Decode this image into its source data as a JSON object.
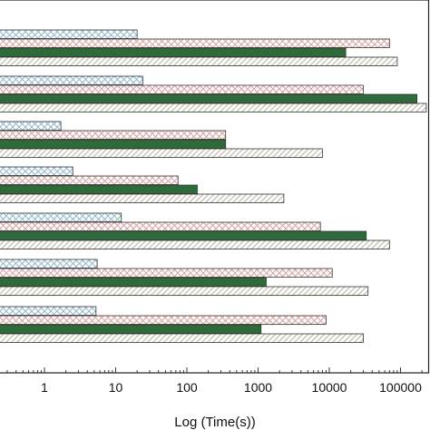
{
  "chart_data": {
    "type": "bar",
    "orientation": "horizontal",
    "x_scale": "log",
    "xlim": [
      0.05,
      250000
    ],
    "xlabel": "Log (Time(s))",
    "x_ticks": [
      1,
      10,
      100,
      1000,
      10000,
      100000
    ],
    "x_tick_labels": [
      "1",
      "10",
      "100",
      "1000",
      "10000",
      "100000"
    ],
    "grid": false,
    "legend": "none",
    "groups": 7,
    "series": [
      {
        "pattern": "crosshatch",
        "color": "#8fb8cc",
        "values": [
          20,
          24,
          1.7,
          2.5,
          12,
          5.5,
          5.3
        ]
      },
      {
        "pattern": "crosshatch",
        "color": "#d9a0a0",
        "values": [
          70000,
          30000,
          350,
          75,
          7500,
          11000,
          9000
        ]
      },
      {
        "pattern": "solid",
        "color": "#2e6a3a",
        "values": [
          17000,
          170000,
          350,
          140,
          33000,
          1300,
          1100
        ]
      },
      {
        "pattern": "diagonal",
        "color": "#b9b29e",
        "values": [
          90000,
          230000,
          8000,
          2300,
          70000,
          35000,
          30000
        ]
      }
    ]
  }
}
